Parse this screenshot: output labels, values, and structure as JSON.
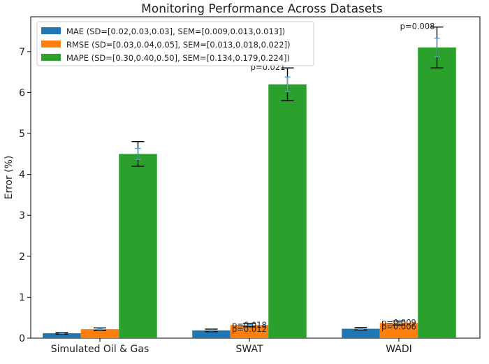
{
  "chart_data": {
    "type": "bar",
    "title": "Monitoring Performance Across Datasets",
    "xlabel": "",
    "ylabel": "Error (%)",
    "ylim": [
      0,
      7.85
    ],
    "yticks": [
      0,
      1,
      2,
      3,
      4,
      5,
      6,
      7
    ],
    "categories": [
      "Simulated Oil & Gas",
      "SWAT",
      "WADI"
    ],
    "legend_position": "top-left",
    "grid": false,
    "series": [
      {
        "name": "MAE (SD=[0.02,0.03,0.03], SEM=[0.009,0.013,0.013])",
        "color": "#1f77b4",
        "values": [
          0.12,
          0.19,
          0.23
        ],
        "sd": [
          0.02,
          0.03,
          0.03
        ],
        "sem": [
          0.009,
          0.013,
          0.013
        ]
      },
      {
        "name": "RMSE (SD=[0.03,0.04,0.05], SEM=[0.013,0.018,0.022])",
        "color": "#ff7f0e",
        "values": [
          0.22,
          0.32,
          0.37
        ],
        "sd": [
          0.03,
          0.04,
          0.05
        ],
        "sem": [
          0.013,
          0.018,
          0.022
        ]
      },
      {
        "name": "MAPE (SD=[0.30,0.40,0.50], SEM=[0.134,0.179,0.224])",
        "color": "#2ca02c",
        "values": [
          4.5,
          6.2,
          7.1
        ],
        "sd": [
          0.3,
          0.4,
          0.5
        ],
        "sem": [
          0.134,
          0.179,
          0.224
        ]
      }
    ],
    "annotations": [
      {
        "text": "p=0.018",
        "category": 1,
        "series": 1,
        "value": 0.36
      },
      {
        "text": "p=0.012",
        "category": 1,
        "series": 1,
        "value": 0.36
      },
      {
        "text": "p=0.021",
        "category": 1,
        "series": 2,
        "value": 6.6
      },
      {
        "text": "p=0.009",
        "category": 2,
        "series": 1,
        "value": 0.42
      },
      {
        "text": "p=0.006",
        "category": 2,
        "series": 1,
        "value": 0.42
      },
      {
        "text": "p=0.008",
        "category": 2,
        "series": 2,
        "value": 7.6
      }
    ]
  }
}
